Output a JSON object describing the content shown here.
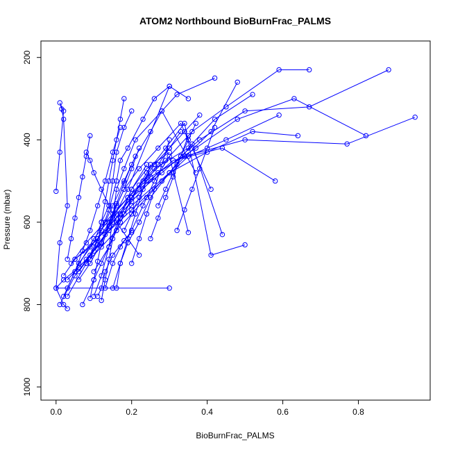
{
  "chart_data": {
    "type": "line",
    "title": "ATOM2 Northbound BioBurnFrac_PALMS",
    "xlabel": "BioBurnFrac_PALMS",
    "ylabel": "Pressure (mbar)",
    "xlim": [
      -0.04,
      0.99
    ],
    "ylim": [
      1032,
      160
    ],
    "y_reversed": true,
    "x_ticks": [
      "0.0",
      "0.2",
      "0.4",
      "0.6",
      "0.8"
    ],
    "x_tick_values": [
      0.0,
      0.2,
      0.4,
      0.6,
      0.8
    ],
    "y_ticks": [
      "200",
      "400",
      "600",
      "800",
      "1000"
    ],
    "y_tick_values": [
      200,
      400,
      600,
      800,
      1000
    ],
    "grid": false,
    "legend": "none",
    "color": "#0000ff",
    "series": [
      {
        "x": [
          0.0,
          0.01,
          0.02,
          0.01,
          0.015,
          0.02,
          0.03,
          0.01,
          0.0,
          0.02,
          0.03
        ],
        "y": [
          525,
          430,
          330,
          310,
          325,
          350,
          560,
          650,
          760,
          800,
          810
        ]
      },
      {
        "x": [
          0.3,
          0.0,
          0.02,
          0.06,
          0.12,
          0.19,
          0.3
        ],
        "y": [
          760,
          760,
          740,
          710,
          650,
          520,
          270
        ]
      },
      {
        "x": [
          0.11,
          0.12,
          0.13,
          0.15,
          0.18,
          0.2
        ],
        "y": [
          780,
          760,
          720,
          680,
          645,
          625
        ]
      },
      {
        "x": [
          0.03,
          0.08,
          0.16,
          0.24,
          0.32,
          0.41,
          0.48
        ],
        "y": [
          780,
          700,
          620,
          540,
          460,
          380,
          260
        ]
      },
      {
        "x": [
          0.07,
          0.1,
          0.12,
          0.14,
          0.17,
          0.2,
          0.24
        ],
        "y": [
          800,
          740,
          700,
          660,
          580,
          520,
          460
        ]
      },
      {
        "x": [
          0.02,
          0.05,
          0.1,
          0.19,
          0.26,
          0.35,
          0.42,
          0.52
        ],
        "y": [
          780,
          720,
          640,
          540,
          470,
          420,
          350,
          290
        ]
      },
      {
        "x": [
          0.03,
          0.08,
          0.13,
          0.2,
          0.28,
          0.35,
          0.45,
          0.59
        ],
        "y": [
          740,
          690,
          630,
          570,
          500,
          440,
          400,
          340
        ]
      },
      {
        "x": [
          0.01,
          0.05,
          0.09,
          0.14,
          0.2,
          0.3,
          0.4,
          0.52,
          0.64
        ],
        "y": [
          800,
          730,
          680,
          620,
          560,
          480,
          430,
          380,
          390
        ]
      },
      {
        "x": [
          0.02,
          0.05,
          0.11,
          0.16,
          0.22,
          0.31,
          0.44,
          0.58
        ],
        "y": [
          730,
          690,
          640,
          580,
          520,
          450,
          420,
          500
        ]
      },
      {
        "x": [
          0.04,
          0.08,
          0.13,
          0.19,
          0.25,
          0.34,
          0.5,
          0.77,
          0.95
        ],
        "y": [
          700,
          650,
          600,
          540,
          490,
          440,
          400,
          410,
          345
        ]
      },
      {
        "x": [
          0.05,
          0.09,
          0.14,
          0.2,
          0.27,
          0.37,
          0.48,
          0.63,
          0.82
        ],
        "y": [
          690,
          660,
          610,
          550,
          480,
          420,
          350,
          300,
          390
        ]
      },
      {
        "x": [
          0.03,
          0.06,
          0.1,
          0.15,
          0.2,
          0.28,
          0.38,
          0.5,
          0.67,
          0.88
        ],
        "y": [
          760,
          700,
          650,
          600,
          540,
          480,
          400,
          330,
          320,
          230
        ]
      },
      {
        "x": [
          0.06,
          0.1,
          0.14,
          0.18,
          0.22,
          0.29,
          0.36,
          0.45,
          0.59,
          0.67
        ],
        "y": [
          720,
          670,
          620,
          580,
          510,
          450,
          380,
          320,
          230,
          230
        ]
      },
      {
        "x": [
          0.08,
          0.11,
          0.13,
          0.15,
          0.18,
          0.21,
          0.25,
          0.28,
          0.32,
          0.42
        ],
        "y": [
          700,
          640,
          600,
          560,
          500,
          440,
          380,
          330,
          290,
          250
        ]
      },
      {
        "x": [
          0.09,
          0.12,
          0.14,
          0.16,
          0.17,
          0.19,
          0.23,
          0.26,
          0.3,
          0.35
        ],
        "y": [
          690,
          620,
          570,
          500,
          450,
          420,
          350,
          300,
          270,
          300
        ]
      },
      {
        "x": [
          0.1,
          0.12,
          0.14,
          0.15,
          0.16,
          0.18,
          0.2
        ],
        "y": [
          650,
          600,
          560,
          500,
          430,
          370,
          330
        ]
      },
      {
        "x": [
          0.12,
          0.13,
          0.14,
          0.15,
          0.17,
          0.2,
          0.24,
          0.3
        ],
        "y": [
          790,
          740,
          690,
          640,
          590,
          520,
          470,
          430
        ]
      },
      {
        "x": [
          0.1,
          0.12,
          0.14,
          0.15,
          0.16,
          0.18,
          0.21,
          0.28,
          0.37
        ],
        "y": [
          780,
          730,
          660,
          590,
          520,
          470,
          400,
          330,
          480
        ]
      },
      {
        "x": [
          0.06,
          0.09,
          0.12,
          0.15,
          0.18,
          0.22,
          0.27,
          0.33,
          0.41
        ],
        "y": [
          740,
          700,
          650,
          580,
          520,
          470,
          420,
          360,
          520
        ]
      },
      {
        "x": [
          0.15,
          0.17,
          0.19,
          0.22,
          0.25,
          0.3,
          0.36,
          0.44
        ],
        "y": [
          760,
          700,
          650,
          600,
          540,
          480,
          410,
          630
        ]
      },
      {
        "x": [
          0.1,
          0.14,
          0.17,
          0.2,
          0.24,
          0.29,
          0.34,
          0.41,
          0.5
        ],
        "y": [
          720,
          660,
          600,
          540,
          480,
          420,
          360,
          680,
          655
        ]
      },
      {
        "x": [
          0.13,
          0.15,
          0.17,
          0.2,
          0.23,
          0.26,
          0.3,
          0.35
        ],
        "y": [
          760,
          700,
          660,
          620,
          560,
          500,
          440,
          625
        ]
      },
      {
        "x": [
          0.05,
          0.07,
          0.09,
          0.11,
          0.13,
          0.15,
          0.17
        ],
        "y": [
          720,
          670,
          620,
          560,
          500,
          430,
          370
        ]
      },
      {
        "x": [
          0.08,
          0.09,
          0.1,
          0.12,
          0.14,
          0.16,
          0.19,
          0.22
        ],
        "y": [
          430,
          450,
          480,
          520,
          560,
          600,
          640,
          680
        ]
      },
      {
        "x": [
          0.09,
          0.1,
          0.11,
          0.12,
          0.14,
          0.16,
          0.18,
          0.2
        ],
        "y": [
          785,
          740,
          695,
          650,
          600,
          555,
          505,
          460
        ]
      },
      {
        "x": [
          0.11,
          0.12,
          0.13,
          0.14,
          0.15,
          0.16,
          0.17,
          0.18
        ],
        "y": [
          655,
          600,
          550,
          500,
          450,
          400,
          350,
          300
        ]
      },
      {
        "x": [
          0.12,
          0.14,
          0.16,
          0.18,
          0.2,
          0.22
        ],
        "y": [
          660,
          610,
          560,
          520,
          470,
          420
        ]
      },
      {
        "x": [
          0.14,
          0.16,
          0.18,
          0.2,
          0.23,
          0.26,
          0.3,
          0.34,
          0.38
        ],
        "y": [
          660,
          620,
          580,
          540,
          500,
          460,
          420,
          380,
          340
        ]
      },
      {
        "x": [
          0.18,
          0.2,
          0.22,
          0.24,
          0.27,
          0.3,
          0.33
        ],
        "y": [
          620,
          580,
          540,
          500,
          460,
          420,
          380
        ]
      },
      {
        "x": [
          0.2,
          0.22,
          0.24,
          0.26,
          0.28,
          0.3
        ],
        "y": [
          700,
          640,
          580,
          520,
          460,
          400
        ]
      },
      {
        "x": [
          0.03,
          0.04,
          0.05,
          0.06,
          0.07,
          0.08,
          0.09
        ],
        "y": [
          690,
          640,
          590,
          540,
          490,
          440,
          390
        ]
      },
      {
        "x": [
          0.16,
          0.17,
          0.19,
          0.21,
          0.23,
          0.25
        ],
        "y": [
          760,
          700,
          640,
          580,
          520,
          460
        ]
      },
      {
        "x": [
          0.25,
          0.27,
          0.29,
          0.31,
          0.33,
          0.35
        ],
        "y": [
          640,
          590,
          540,
          490,
          440,
          390
        ]
      },
      {
        "x": [
          0.27,
          0.29,
          0.31,
          0.33,
          0.35,
          0.37
        ],
        "y": [
          560,
          520,
          480,
          440,
          400,
          360
        ]
      },
      {
        "x": [
          0.32,
          0.34,
          0.36,
          0.38,
          0.4,
          0.42
        ],
        "y": [
          620,
          570,
          520,
          470,
          420,
          370
        ]
      }
    ]
  }
}
